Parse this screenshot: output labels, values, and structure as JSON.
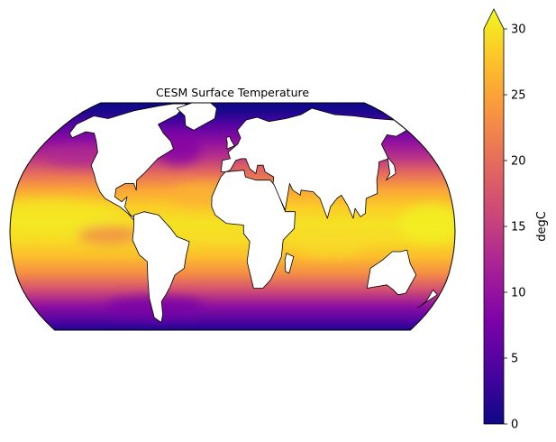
{
  "title": "CESM Surface Temperature",
  "projection": "Robinson",
  "colormap": "plasma",
  "colorbar": {
    "label": "degC",
    "min": 0,
    "max": 30,
    "extend": "max",
    "ticks": [
      0,
      5,
      10,
      15,
      20,
      25,
      30
    ],
    "tick_labels": [
      "0",
      "5",
      "10",
      "15",
      "20",
      "25",
      "30"
    ]
  },
  "chart_data": {
    "type": "heatmap",
    "title": "CESM Surface Temperature",
    "variable": "Surface Temperature",
    "units": "degC",
    "value_range": [
      0,
      30
    ],
    "colormap": "plasma",
    "ocean_temperature_by_latitude": {
      "lat": [
        -85,
        -75,
        -65,
        -55,
        -45,
        -35,
        -25,
        -15,
        -5,
        5,
        15,
        25,
        35,
        45,
        55,
        65,
        75,
        85
      ],
      "degC": [
        -1,
        0,
        1,
        4,
        9,
        16,
        22,
        26,
        28,
        28.5,
        27,
        24,
        19,
        13,
        9,
        5,
        1,
        0
      ]
    },
    "land_color": "#ffffff",
    "coastlines": true
  }
}
